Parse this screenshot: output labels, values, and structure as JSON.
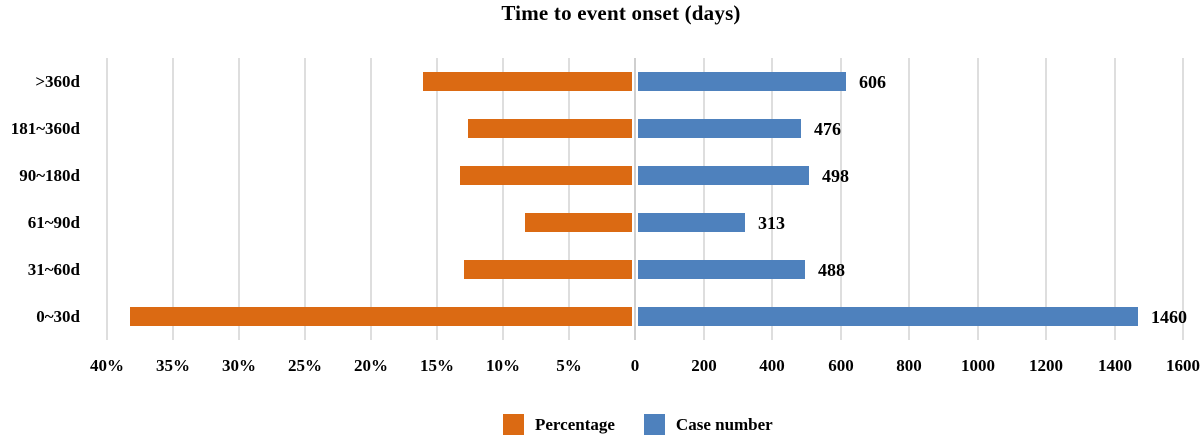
{
  "chart_data": {
    "type": "bar",
    "variant": "diverging-horizontal-tornado",
    "title": "Time to event onset (days)",
    "categories": [
      ">360d",
      "181~360d",
      "90~180d",
      "61~90d",
      "31~60d",
      "0~30d"
    ],
    "series": [
      {
        "name": "Percentage",
        "side": "left",
        "unit": "%",
        "values": [
          15.8,
          12.4,
          13.0,
          8.1,
          12.7,
          38.0
        ]
      },
      {
        "name": "Case number",
        "side": "right",
        "values": [
          606,
          476,
          498,
          313,
          488,
          1460
        ]
      }
    ],
    "data_labels": [
      "606",
      "476",
      "498",
      "313",
      "488",
      "1460"
    ],
    "left_axis": {
      "tick_labels": [
        "40%",
        "35%",
        "30%",
        "25%",
        "20%",
        "15%",
        "10%",
        "5%"
      ],
      "tick_values": [
        40,
        35,
        30,
        25,
        20,
        15,
        10,
        5
      ],
      "range": [
        0,
        40
      ]
    },
    "center_tick_label": "0",
    "right_axis": {
      "tick_labels": [
        "200",
        "400",
        "600",
        "800",
        "1000",
        "1200",
        "1400",
        "1600"
      ],
      "tick_values": [
        200,
        400,
        600,
        800,
        1000,
        1200,
        1400,
        1600
      ],
      "range": [
        0,
        1600
      ]
    },
    "legend": {
      "position": "bottom-center",
      "entries": [
        "Percentage",
        "Case number"
      ]
    },
    "grid": "vertical gridlines at every axis tick",
    "colors": {
      "percentage": "#DB6A13",
      "case_number": "#4E81BD",
      "gridline": "#DEDEDE",
      "center_line": "#CFCFCF",
      "text": "#000000"
    }
  }
}
